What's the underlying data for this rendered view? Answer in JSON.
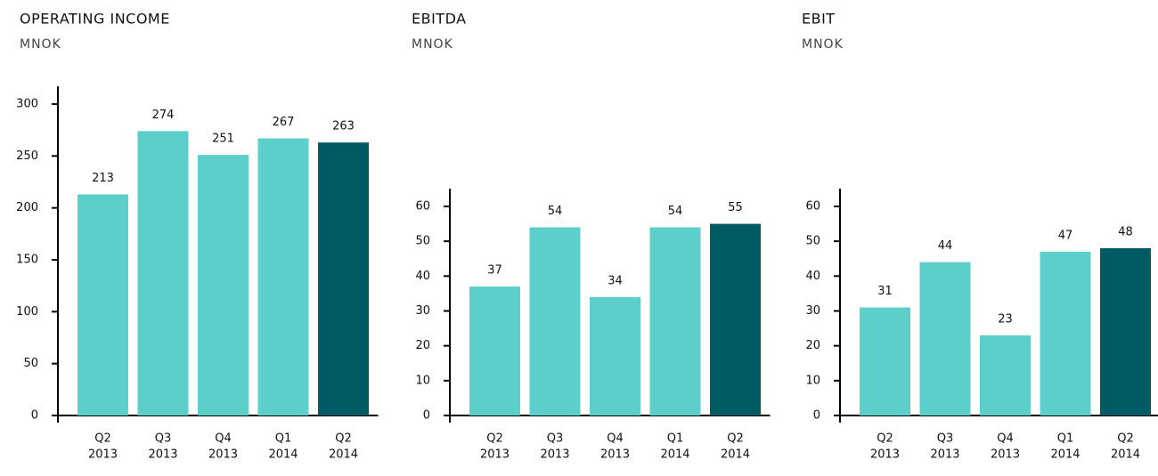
{
  "chart_data": [
    {
      "type": "bar",
      "title": "OPERATING INCOME",
      "subtitle": "MNOK",
      "categories": [
        [
          "Q2",
          "2013"
        ],
        [
          "Q3",
          "2013"
        ],
        [
          "Q4",
          "2013"
        ],
        [
          "Q1",
          "2014"
        ],
        [
          "Q2",
          "2014"
        ]
      ],
      "values": [
        213,
        274,
        251,
        267,
        263
      ],
      "colors": [
        "#5ccfca",
        "#5ccfca",
        "#5ccfca",
        "#5ccfca",
        "#005a64"
      ],
      "ylim": [
        0,
        300
      ],
      "yticks": [
        0,
        50,
        100,
        150,
        200,
        250,
        300
      ]
    },
    {
      "type": "bar",
      "title": "EBITDA",
      "subtitle": "MNOK",
      "categories": [
        [
          "Q2",
          "2013"
        ],
        [
          "Q3",
          "2013"
        ],
        [
          "Q4",
          "2013"
        ],
        [
          "Q1",
          "2014"
        ],
        [
          "Q2",
          "2014"
        ]
      ],
      "values": [
        37,
        54,
        34,
        54,
        55
      ],
      "colors": [
        "#5ccfca",
        "#5ccfca",
        "#5ccfca",
        "#5ccfca",
        "#005a64"
      ],
      "ylim": [
        0,
        60
      ],
      "yticks": [
        0,
        10,
        20,
        30,
        40,
        50,
        60
      ]
    },
    {
      "type": "bar",
      "title": "EBIT",
      "subtitle": "MNOK",
      "categories": [
        [
          "Q2",
          "2013"
        ],
        [
          "Q3",
          "2013"
        ],
        [
          "Q4",
          "2013"
        ],
        [
          "Q1",
          "2014"
        ],
        [
          "Q2",
          "2014"
        ]
      ],
      "values": [
        31,
        44,
        23,
        47,
        48
      ],
      "colors": [
        "#5ccfca",
        "#5ccfca",
        "#5ccfca",
        "#5ccfca",
        "#005a64"
      ],
      "ylim": [
        0,
        60
      ],
      "yticks": [
        0,
        10,
        20,
        30,
        40,
        50,
        60
      ]
    }
  ]
}
